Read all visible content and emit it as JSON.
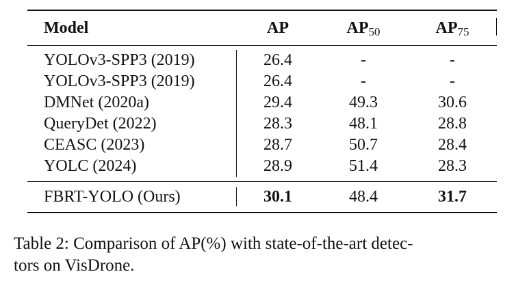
{
  "table": {
    "headers": {
      "model": "Model",
      "ap": "AP",
      "ap50_main": "AP",
      "ap50_sub": "50",
      "ap75_main": "AP",
      "ap75_sub": "75"
    },
    "rows": [
      {
        "model": "YOLOv3-SPP3 (2019)",
        "ap": "26.4",
        "ap50": "-",
        "ap75": "-"
      },
      {
        "model": "YOLOv3-SPP3 (2019)",
        "ap": "26.4",
        "ap50": "-",
        "ap75": "-"
      },
      {
        "model": "DMNet  (2020a)",
        "ap": "29.4",
        "ap50": "49.3",
        "ap75": "30.6"
      },
      {
        "model": "QueryDet  (2022)",
        "ap": "28.3",
        "ap50": "48.1",
        "ap75": "28.8"
      },
      {
        "model": "CEASC  (2023)",
        "ap": "28.7",
        "ap50": "50.7",
        "ap75": "28.4"
      },
      {
        "model": "YOLC  (2024)",
        "ap": "28.9",
        "ap50": "51.4",
        "ap75": "28.3"
      }
    ],
    "ours": {
      "model": "FBRT-YOLO (Ours)",
      "ap": "30.1",
      "ap50": "48.4",
      "ap75": "31.7"
    }
  },
  "caption": {
    "line1": "Table 2: Comparison of AP(%) with state-of-the-art detec-",
    "line2": "tors on VisDrone."
  }
}
